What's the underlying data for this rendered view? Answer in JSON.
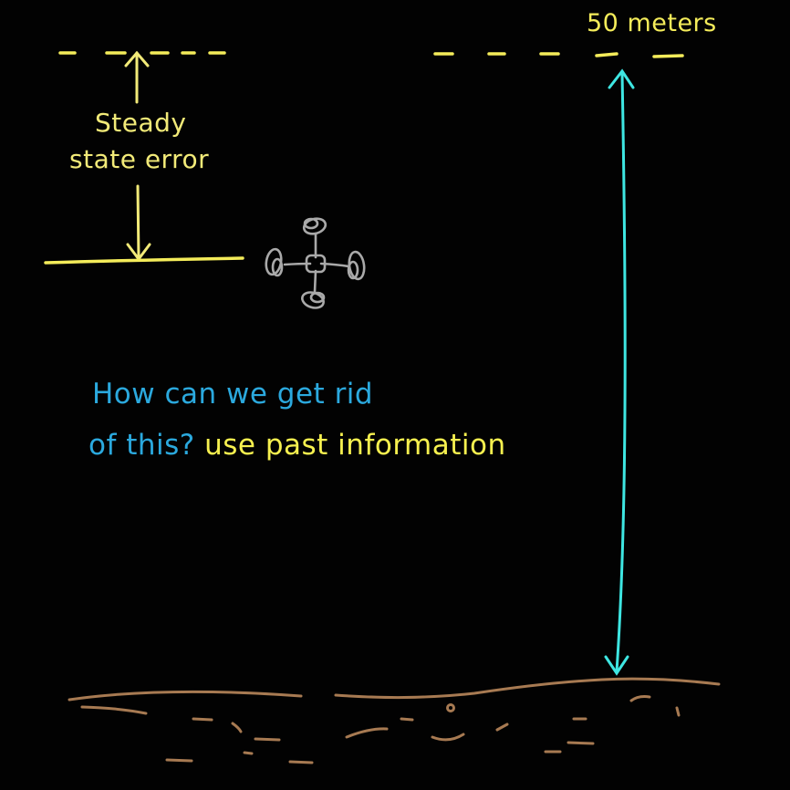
{
  "labels": {
    "target_height": "50 meters",
    "error_line1": "Steady",
    "error_line2": "state error"
  },
  "question": {
    "line1": "How can we get rid",
    "line2_prefix": "of this?",
    "answer": "use past information"
  },
  "colors": {
    "background": "#020202",
    "setpoint_yellow": "#f4ec5a",
    "error_label": "#f2ea78",
    "arrow_cyan": "#3ee6e2",
    "question_blue": "#2ba9de",
    "answer_yellow": "#f6f04f",
    "ground_brown": "#a77a52",
    "drone_gray": "#a9a9a9"
  },
  "icons": {
    "drone": "quadcopter-icon"
  }
}
